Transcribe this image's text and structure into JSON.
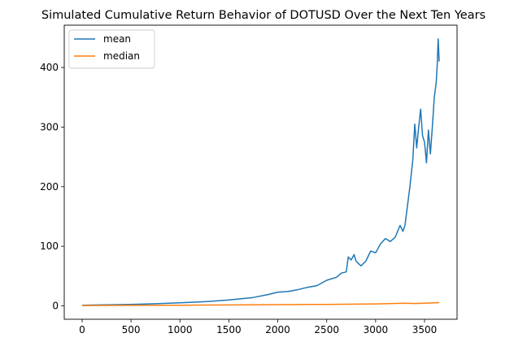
{
  "chart_data": {
    "type": "line",
    "title": "Simulated Cumulative Return Behavior of DOTUSD Over the Next Ten Years",
    "xlabel": "",
    "ylabel": "",
    "xlim": [
      -182.5,
      3832.5
    ],
    "ylim": [
      -22.5,
      471
    ],
    "xticks": [
      0,
      500,
      1000,
      1500,
      2000,
      2500,
      3000,
      3500
    ],
    "yticks": [
      0,
      100,
      200,
      300,
      400
    ],
    "grid": false,
    "legend_position": "top-left",
    "series": [
      {
        "name": "mean",
        "color": "#1f77b4",
        "x": [
          0,
          250,
          500,
          750,
          1000,
          1250,
          1500,
          1750,
          1900,
          2000,
          2100,
          2200,
          2300,
          2400,
          2500,
          2600,
          2650,
          2700,
          2720,
          2750,
          2780,
          2800,
          2850,
          2900,
          2950,
          3000,
          3050,
          3100,
          3150,
          3200,
          3250,
          3280,
          3300,
          3320,
          3350,
          3380,
          3400,
          3420,
          3440,
          3460,
          3480,
          3500,
          3520,
          3540,
          3560,
          3580,
          3600,
          3620,
          3630,
          3640,
          3650
        ],
        "values": [
          1,
          1.7,
          2.5,
          3.5,
          5,
          7,
          10,
          14,
          19,
          23,
          24,
          27,
          31,
          34,
          43,
          48,
          55,
          57,
          82,
          77,
          86,
          75,
          67,
          75,
          92,
          89,
          104,
          113,
          108,
          115,
          135,
          125,
          135,
          160,
          200,
          245,
          305,
          265,
          300,
          330,
          285,
          275,
          240,
          295,
          255,
          300,
          350,
          375,
          405,
          448,
          410
        ]
      },
      {
        "name": "median",
        "color": "#ff7f0e",
        "x": [
          0,
          500,
          1000,
          1500,
          2000,
          2500,
          3000,
          3300,
          3400,
          3500,
          3600,
          3650
        ],
        "values": [
          0.5,
          0.8,
          1.1,
          1.5,
          2,
          2.5,
          3.2,
          4.5,
          4,
          4.5,
          5,
          5.5
        ]
      }
    ]
  }
}
